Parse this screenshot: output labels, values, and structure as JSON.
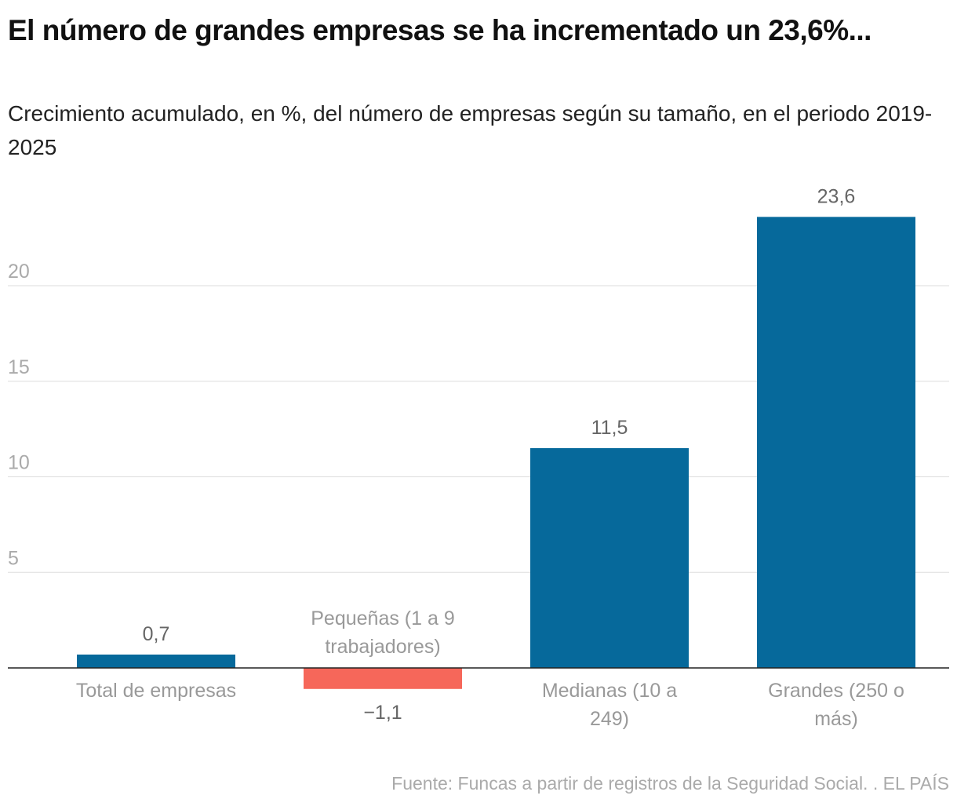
{
  "title": "El número de grandes empresas se ha incrementado un 23,6%...",
  "subtitle": "Crecimiento acumulado, en %, del número de empresas según su tamaño, en el periodo 2019-2025",
  "footer": "Fuente: Funcas a partir de registros de la Seguridad Social. . EL PAÍS",
  "chart_data": {
    "type": "bar",
    "title": "El número de grandes empresas se ha incrementado un 23,6%...",
    "subtitle": "Crecimiento acumulado, en %, del número de empresas según su tamaño, en el periodo 2019-2025",
    "categories": [
      [
        "Total de empresas"
      ],
      [
        "Pequeñas (1 a 9",
        "trabajadores)"
      ],
      [
        "Medianas (10 a",
        "249)"
      ],
      [
        "Grandes (250 o",
        "más)"
      ]
    ],
    "values": [
      0.7,
      -1.1,
      11.5,
      23.6
    ],
    "value_labels": [
      "0,7",
      "−1,1",
      "11,5",
      "23,6"
    ],
    "yticks": [
      5,
      10,
      15,
      20
    ],
    "ylim": [
      -1.1,
      24
    ],
    "grid": true,
    "xlabel": "",
    "ylabel": "",
    "colors": {
      "positive": "#06699b",
      "negative": "#f6675a",
      "grid": "#dddddd",
      "axis": "#222222",
      "tick_text": "#aaaaaa",
      "label_text": "#999999",
      "value_text": "#666666"
    }
  }
}
